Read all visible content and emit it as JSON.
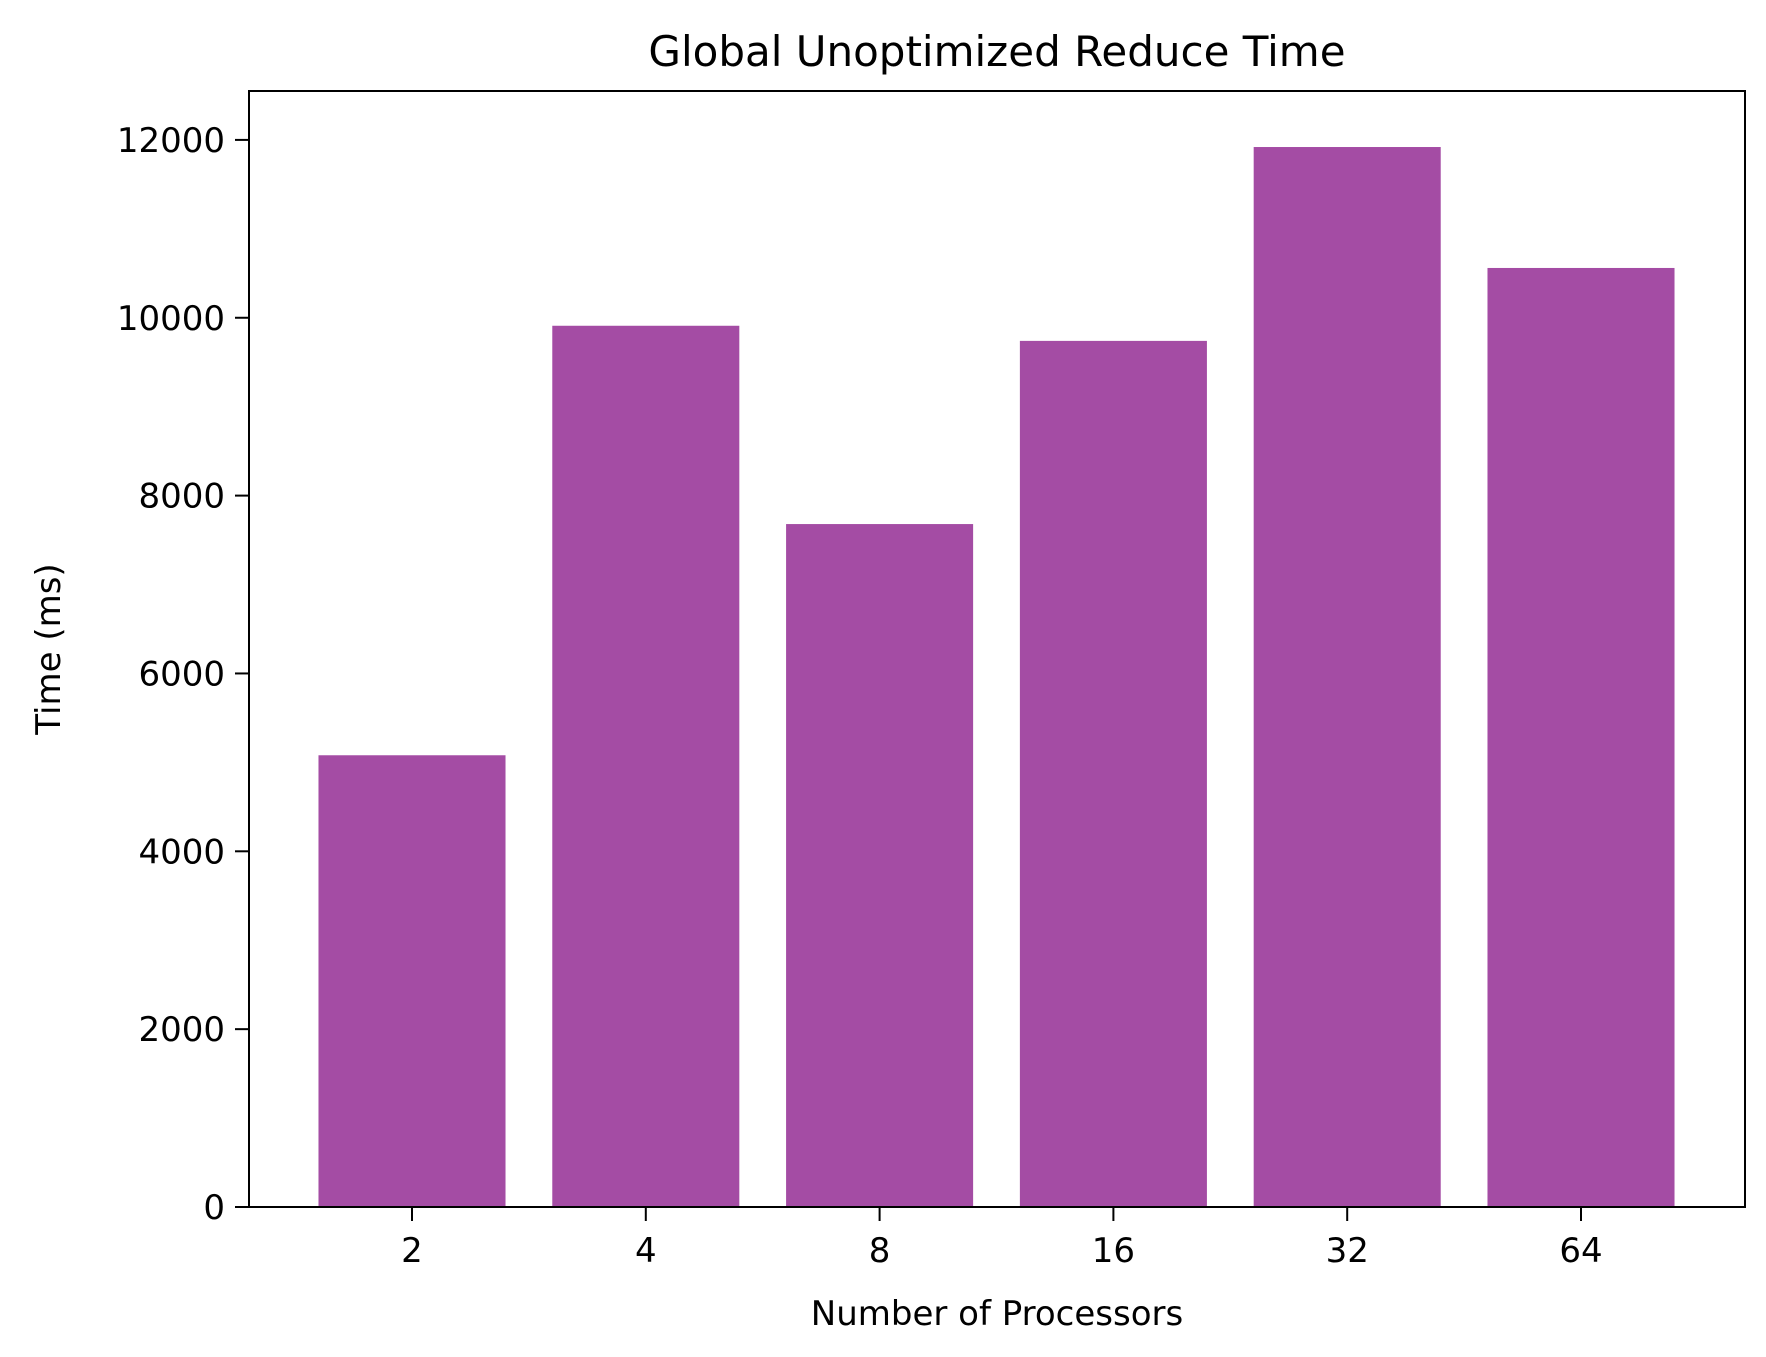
{
  "chart_data": {
    "type": "bar",
    "title": "Global Unoptimized Reduce Time",
    "xlabel": "Number of Processors",
    "ylabel": "Time (ms)",
    "categories": [
      "2",
      "4",
      "8",
      "16",
      "32",
      "64"
    ],
    "values": [
      5080,
      9910,
      7680,
      9740,
      11920,
      10560
    ],
    "ylim": [
      0,
      12550
    ],
    "yticks": [
      0,
      2000,
      4000,
      6000,
      8000,
      10000,
      12000
    ],
    "ytick_labels": [
      "0",
      "2000",
      "4000",
      "6000",
      "8000",
      "10000",
      "12000"
    ],
    "bar_color": "#a44ca4",
    "grid": false,
    "legend": "none"
  }
}
